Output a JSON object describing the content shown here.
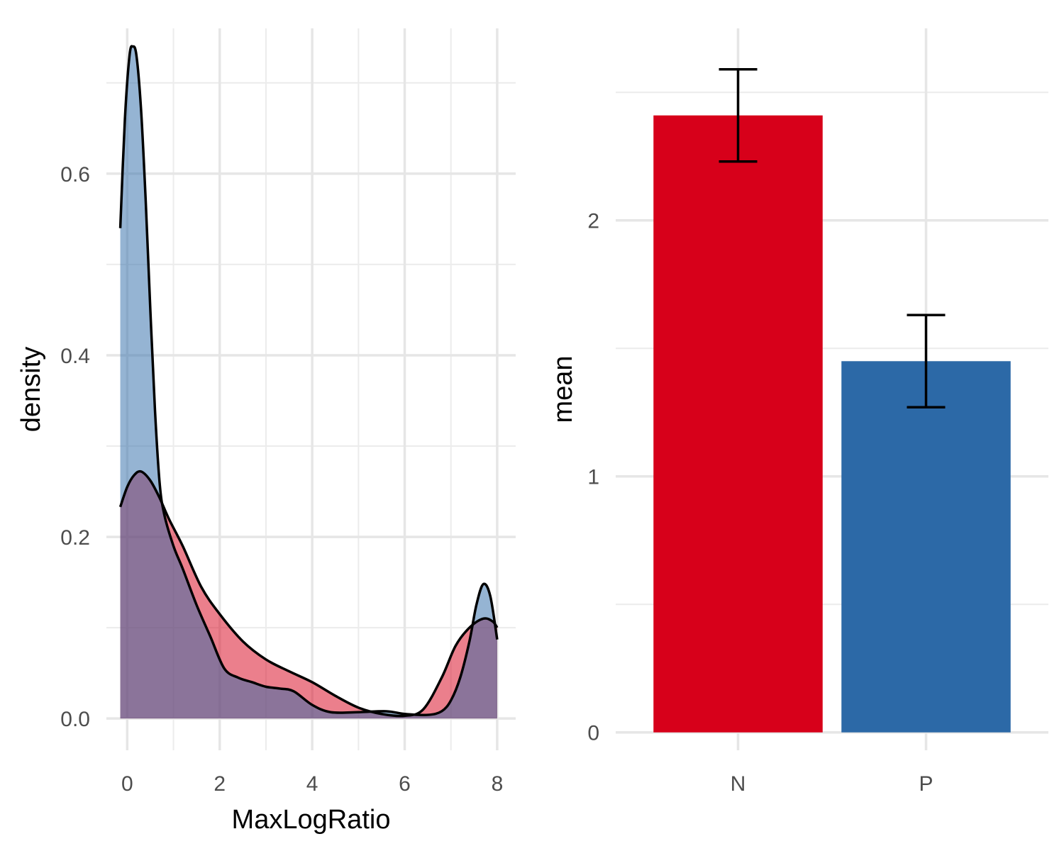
{
  "chart_data": [
    {
      "type": "area",
      "xlabel": "MaxLogRatio",
      "ylabel": "density",
      "xlim": [
        -0.45,
        8.4
      ],
      "ylim": [
        -0.035,
        0.76
      ],
      "x_ticks": [
        0,
        2,
        4,
        6,
        8
      ],
      "y_ticks": [
        0.0,
        0.2,
        0.4,
        0.6
      ],
      "x_tick_labels": [
        "0",
        "2",
        "4",
        "6",
        "8"
      ],
      "y_tick_labels": [
        "0.0",
        "0.2",
        "0.4",
        "0.6"
      ],
      "grid": true,
      "legend": "none",
      "series": [
        {
          "color": "#d7001a",
          "fill_opacity": 0.5,
          "x": [
            -0.15,
            0.0,
            0.15,
            0.3,
            0.5,
            0.7,
            0.9,
            1.2,
            1.6,
            2.0,
            2.5,
            3.0,
            3.5,
            4.0,
            4.5,
            5.0,
            5.5,
            6.0,
            6.4,
            6.8,
            7.1,
            7.4,
            7.7,
            7.9,
            8.0
          ],
          "values": [
            0.233,
            0.255,
            0.268,
            0.272,
            0.262,
            0.243,
            0.22,
            0.19,
            0.145,
            0.115,
            0.085,
            0.065,
            0.052,
            0.04,
            0.025,
            0.012,
            0.005,
            0.003,
            0.01,
            0.045,
            0.08,
            0.1,
            0.11,
            0.107,
            0.1
          ]
        },
        {
          "color": "#2c69a7",
          "fill_opacity": 0.5,
          "x": [
            -0.15,
            -0.05,
            0.05,
            0.12,
            0.2,
            0.3,
            0.4,
            0.5,
            0.6,
            0.7,
            0.8,
            1.0,
            1.2,
            1.5,
            1.8,
            2.1,
            2.4,
            2.7,
            3.0,
            3.3,
            3.6,
            4.0,
            4.4,
            5.0,
            5.6,
            6.0,
            6.5,
            6.8,
            7.0,
            7.2,
            7.4,
            7.55,
            7.7,
            7.85,
            8.0
          ],
          "values": [
            0.54,
            0.66,
            0.73,
            0.74,
            0.73,
            0.67,
            0.57,
            0.45,
            0.34,
            0.26,
            0.225,
            0.19,
            0.165,
            0.125,
            0.09,
            0.055,
            0.045,
            0.04,
            0.035,
            0.033,
            0.03,
            0.015,
            0.007,
            0.007,
            0.008,
            0.005,
            0.004,
            0.008,
            0.02,
            0.045,
            0.085,
            0.125,
            0.148,
            0.135,
            0.087
          ]
        }
      ]
    },
    {
      "type": "bar",
      "xlabel": "",
      "ylabel": "mean",
      "categories": [
        "N",
        "P"
      ],
      "values": [
        2.41,
        1.45
      ],
      "error_low": [
        2.23,
        1.27
      ],
      "error_high": [
        2.59,
        1.63
      ],
      "colors": [
        "#d7001a",
        "#2c69a7"
      ],
      "ylim": [
        -0.07,
        2.75
      ],
      "y_ticks": [
        0,
        1,
        2
      ],
      "y_tick_labels": [
        "0",
        "1",
        "2"
      ],
      "grid": true,
      "legend": "none"
    }
  ]
}
